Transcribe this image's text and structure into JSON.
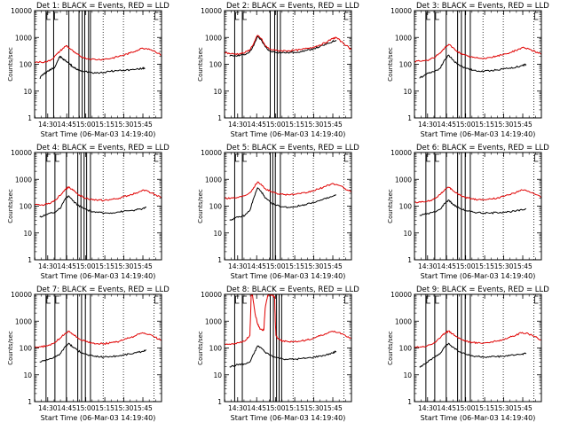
{
  "colors": {
    "events": "#000000",
    "lld": "#e00000",
    "axis": "#000000",
    "background": "#ffffff"
  },
  "common": {
    "ylabel": "Counts/sec",
    "xlabel": "Start Time (06-Mar-03 14:19:40)",
    "ytick_labels": [
      "1",
      "10",
      "100",
      "1000",
      "10000"
    ],
    "ytick_values": [
      1,
      10,
      100,
      1000,
      10000
    ],
    "xtick_labels": [
      "14:30",
      "14:45",
      "15:00",
      "15:15",
      "15:30",
      "15:45"
    ],
    "xtick_minutes": [
      10.33,
      25.33,
      40.33,
      55.33,
      70.33,
      85.33
    ],
    "xlim_minutes": [
      0,
      100
    ],
    "ylim": [
      1,
      10000
    ],
    "yscale": "log",
    "marker_tag": "C"
  },
  "chart_data": [
    {
      "type": "line",
      "detector": 1,
      "title": "Det 1: BLACK = Events, RED = LLD",
      "series": [
        {
          "name": "Events",
          "color": "#000000",
          "x": [
            4,
            6,
            8,
            10,
            12,
            14,
            16,
            18,
            20,
            22,
            24,
            26,
            28,
            30,
            32,
            34,
            36,
            40,
            45,
            50,
            55,
            60,
            65,
            70,
            75,
            80,
            85,
            87
          ],
          "y": [
            30,
            40,
            45,
            55,
            60,
            70,
            80,
            130,
            200,
            160,
            140,
            120,
            100,
            80,
            70,
            62,
            58,
            55,
            50,
            48,
            50,
            55,
            58,
            60,
            62,
            65,
            70,
            72
          ]
        },
        {
          "name": "LLD",
          "color": "#e00000",
          "x": [
            0,
            5,
            10,
            14,
            18,
            22,
            25,
            28,
            32,
            36,
            40,
            45,
            50,
            55,
            60,
            65,
            70,
            75,
            80,
            85,
            90,
            95,
            100
          ],
          "y": [
            120,
            120,
            125,
            160,
            250,
            380,
            500,
            380,
            260,
            200,
            170,
            155,
            150,
            155,
            165,
            190,
            220,
            260,
            320,
            400,
            380,
            300,
            220
          ]
        }
      ],
      "vlines_solid": [
        9,
        15,
        27,
        35,
        37.5,
        39.5,
        42.5,
        44
      ],
      "vlines_dotted": [
        54,
        70,
        94
      ]
    },
    {
      "type": "line",
      "detector": 2,
      "title": "Det 2: BLACK = Events, RED = LLD",
      "series": [
        {
          "name": "Events",
          "color": "#000000",
          "x": [
            4,
            8,
            12,
            16,
            20,
            23,
            26,
            29,
            32,
            35,
            40,
            45,
            50,
            55,
            60,
            65,
            70,
            75,
            80,
            85,
            88
          ],
          "y": [
            200,
            210,
            220,
            230,
            300,
            500,
            1100,
            800,
            450,
            320,
            280,
            270,
            270,
            280,
            300,
            330,
            380,
            450,
            550,
            700,
            800
          ]
        },
        {
          "name": "LLD",
          "color": "#e00000",
          "x": [
            0,
            4,
            8,
            12,
            16,
            20,
            23,
            26,
            29,
            32,
            35,
            40,
            45,
            50,
            55,
            60,
            65,
            70,
            75,
            80,
            85,
            88,
            92,
            96,
            100
          ],
          "y": [
            280,
            250,
            240,
            250,
            270,
            350,
            600,
            1200,
            900,
            500,
            380,
            330,
            320,
            320,
            330,
            350,
            390,
            440,
            520,
            650,
            900,
            1000,
            700,
            500,
            350
          ]
        }
      ],
      "vlines_solid": [
        8,
        14,
        36,
        39.5,
        41.5,
        44
      ],
      "vlines_dotted": [
        54,
        70,
        94
      ]
    },
    {
      "type": "line",
      "detector": 3,
      "title": "Det 3: BLACK = Events, RED = LLD",
      "series": [
        {
          "name": "Events",
          "color": "#000000",
          "x": [
            4,
            8,
            12,
            16,
            20,
            24,
            27,
            30,
            34,
            38,
            42,
            46,
            50,
            55,
            60,
            65,
            70,
            75,
            80,
            85,
            88
          ],
          "y": [
            30,
            40,
            50,
            55,
            70,
            150,
            220,
            150,
            100,
            80,
            70,
            60,
            55,
            55,
            58,
            62,
            68,
            72,
            78,
            90,
            100
          ]
        },
        {
          "name": "LLD",
          "color": "#e00000",
          "x": [
            0,
            5,
            10,
            15,
            20,
            24,
            27,
            30,
            34,
            38,
            42,
            46,
            50,
            55,
            60,
            65,
            70,
            75,
            80,
            85,
            90,
            95,
            100
          ],
          "y": [
            130,
            130,
            140,
            170,
            260,
            420,
            550,
            420,
            300,
            230,
            200,
            180,
            170,
            170,
            180,
            200,
            230,
            270,
            330,
            420,
            380,
            300,
            230
          ]
        }
      ],
      "vlines_solid": [
        9,
        16,
        25,
        34,
        37,
        40,
        44
      ],
      "vlines_dotted": [
        54,
        70,
        94
      ]
    },
    {
      "type": "line",
      "detector": 4,
      "title": "Det 4: BLACK = Events, RED = LLD",
      "series": [
        {
          "name": "Events",
          "color": "#000000",
          "x": [
            4,
            8,
            12,
            16,
            20,
            24,
            27,
            30,
            34,
            38,
            42,
            46,
            50,
            55,
            60,
            65,
            70,
            75,
            80,
            85,
            88
          ],
          "y": [
            40,
            45,
            55,
            60,
            80,
            180,
            240,
            160,
            110,
            85,
            70,
            62,
            58,
            55,
            56,
            60,
            64,
            68,
            72,
            80,
            90
          ]
        },
        {
          "name": "LLD",
          "color": "#e00000",
          "x": [
            0,
            5,
            10,
            15,
            20,
            24,
            27,
            30,
            34,
            38,
            42,
            46,
            50,
            55,
            60,
            65,
            70,
            75,
            80,
            85,
            90,
            95,
            100
          ],
          "y": [
            110,
            110,
            120,
            150,
            250,
            420,
            520,
            400,
            280,
            220,
            190,
            170,
            165,
            165,
            175,
            190,
            220,
            260,
            310,
            400,
            350,
            270,
            200
          ]
        }
      ],
      "vlines_solid": [
        9,
        16,
        25,
        34,
        36.5,
        39,
        41,
        44
      ],
      "vlines_dotted": [
        54,
        70,
        94
      ]
    },
    {
      "type": "line",
      "detector": 5,
      "title": "Det 5: BLACK = Events, RED = LLD",
      "series": [
        {
          "name": "Events",
          "color": "#000000",
          "x": [
            4,
            8,
            12,
            16,
            20,
            23,
            26,
            29,
            32,
            36,
            40,
            45,
            50,
            55,
            60,
            65,
            70,
            75,
            80,
            85,
            88
          ],
          "y": [
            30,
            35,
            40,
            45,
            70,
            200,
            480,
            350,
            200,
            140,
            110,
            95,
            90,
            95,
            105,
            120,
            140,
            160,
            190,
            230,
            260
          ]
        },
        {
          "name": "LLD",
          "color": "#e00000",
          "x": [
            0,
            5,
            10,
            15,
            20,
            23,
            26,
            29,
            32,
            36,
            40,
            45,
            50,
            55,
            60,
            65,
            70,
            75,
            80,
            85,
            90,
            95,
            100
          ],
          "y": [
            200,
            200,
            210,
            240,
            320,
            500,
            800,
            650,
            450,
            360,
            310,
            280,
            270,
            275,
            290,
            320,
            380,
            450,
            550,
            700,
            600,
            450,
            330
          ]
        }
      ],
      "vlines_solid": [
        8,
        14,
        36,
        38,
        40,
        44
      ],
      "vlines_dotted": [
        54,
        70,
        94
      ]
    },
    {
      "type": "line",
      "detector": 6,
      "title": "Det 6: BLACK = Events, RED = LLD",
      "series": [
        {
          "name": "Events",
          "color": "#000000",
          "x": [
            4,
            8,
            12,
            16,
            20,
            24,
            27,
            30,
            34,
            38,
            42,
            46,
            50,
            55,
            60,
            65,
            70,
            75,
            80,
            85,
            88
          ],
          "y": [
            45,
            50,
            55,
            60,
            75,
            130,
            170,
            120,
            90,
            75,
            65,
            60,
            58,
            55,
            55,
            58,
            60,
            62,
            66,
            72,
            80
          ]
        },
        {
          "name": "LLD",
          "color": "#e00000",
          "x": [
            0,
            5,
            10,
            15,
            20,
            24,
            27,
            30,
            34,
            38,
            42,
            46,
            50,
            55,
            60,
            65,
            70,
            75,
            80,
            85,
            90,
            95,
            100
          ],
          "y": [
            140,
            140,
            150,
            180,
            270,
            420,
            500,
            390,
            290,
            230,
            200,
            185,
            175,
            175,
            185,
            200,
            230,
            270,
            320,
            400,
            360,
            280,
            210
          ]
        }
      ],
      "vlines_solid": [
        9,
        16,
        25,
        34,
        37,
        40,
        44
      ],
      "vlines_dotted": [
        54,
        70,
        94
      ]
    },
    {
      "type": "line",
      "detector": 7,
      "title": "Det 7: BLACK = Events, RED = LLD",
      "series": [
        {
          "name": "Events",
          "color": "#000000",
          "x": [
            4,
            8,
            12,
            16,
            20,
            24,
            27,
            30,
            34,
            38,
            42,
            46,
            50,
            55,
            60,
            65,
            70,
            75,
            80,
            85,
            88
          ],
          "y": [
            30,
            35,
            40,
            45,
            60,
            110,
            150,
            110,
            80,
            65,
            55,
            50,
            48,
            46,
            48,
            50,
            55,
            60,
            66,
            75,
            85
          ]
        },
        {
          "name": "LLD",
          "color": "#e00000",
          "x": [
            0,
            5,
            10,
            15,
            20,
            24,
            27,
            30,
            34,
            38,
            42,
            46,
            50,
            55,
            60,
            65,
            70,
            75,
            80,
            85,
            90,
            95,
            100
          ],
          "y": [
            110,
            110,
            120,
            150,
            230,
            350,
            420,
            330,
            240,
            190,
            165,
            150,
            145,
            145,
            155,
            170,
            200,
            240,
            290,
            370,
            320,
            250,
            190
          ]
        }
      ],
      "vlines_solid": [
        9,
        16,
        25,
        34,
        37,
        40,
        44
      ],
      "vlines_dotted": [
        54,
        70,
        94
      ]
    },
    {
      "type": "line",
      "detector": 8,
      "title": "Det 8: BLACK = Events, RED = LLD",
      "series": [
        {
          "name": "Events",
          "color": "#000000",
          "x": [
            4,
            8,
            12,
            16,
            20,
            23,
            26,
            29,
            32,
            36,
            40,
            45,
            50,
            55,
            60,
            65,
            70,
            75,
            80,
            85,
            88
          ],
          "y": [
            20,
            22,
            25,
            25,
            30,
            60,
            120,
            100,
            70,
            55,
            45,
            40,
            38,
            38,
            40,
            42,
            45,
            50,
            55,
            65,
            75
          ]
        },
        {
          "name": "LLD",
          "color": "#e00000",
          "x": [
            0,
            4,
            8,
            12,
            16,
            20,
            21,
            22,
            24,
            26,
            28,
            30,
            31,
            32,
            34,
            36,
            38,
            39.5,
            40,
            40.5,
            42,
            44,
            46,
            50,
            55,
            60,
            65,
            70,
            75,
            80,
            85,
            90,
            95,
            100
          ],
          "y": [
            140,
            140,
            150,
            160,
            180,
            300,
            9000,
            9500,
            2000,
            800,
            500,
            450,
            500,
            3000,
            9000,
            9500,
            9000,
            8000,
            1000,
            300,
            230,
            200,
            180,
            170,
            170,
            180,
            200,
            230,
            280,
            330,
            420,
            380,
            300,
            220
          ]
        }
      ],
      "vlines_solid": [
        8,
        14,
        36,
        38.5,
        41,
        43,
        45
      ],
      "vlines_dotted": [
        54,
        70,
        94
      ]
    },
    {
      "type": "line",
      "detector": 9,
      "title": "Det 9: BLACK = Events, RED = LLD",
      "series": [
        {
          "name": "Events",
          "color": "#000000",
          "x": [
            4,
            8,
            12,
            16,
            20,
            24,
            27,
            30,
            34,
            38,
            42,
            46,
            50,
            55,
            60,
            65,
            70,
            75,
            80,
            85,
            88
          ],
          "y": [
            20,
            25,
            35,
            45,
            60,
            110,
            150,
            110,
            80,
            65,
            55,
            50,
            48,
            46,
            46,
            48,
            50,
            52,
            55,
            60,
            65
          ]
        },
        {
          "name": "LLD",
          "color": "#e00000",
          "x": [
            0,
            5,
            10,
            15,
            20,
            24,
            27,
            30,
            34,
            38,
            42,
            46,
            50,
            55,
            60,
            65,
            70,
            75,
            80,
            85,
            90,
            95,
            100
          ],
          "y": [
            110,
            110,
            120,
            150,
            230,
            360,
            430,
            340,
            250,
            200,
            175,
            160,
            155,
            155,
            165,
            180,
            210,
            250,
            300,
            380,
            330,
            260,
            200
          ]
        }
      ],
      "vlines_solid": [
        9,
        16,
        25,
        34,
        37,
        40,
        44
      ],
      "vlines_dotted": [
        54,
        70,
        94
      ]
    }
  ]
}
